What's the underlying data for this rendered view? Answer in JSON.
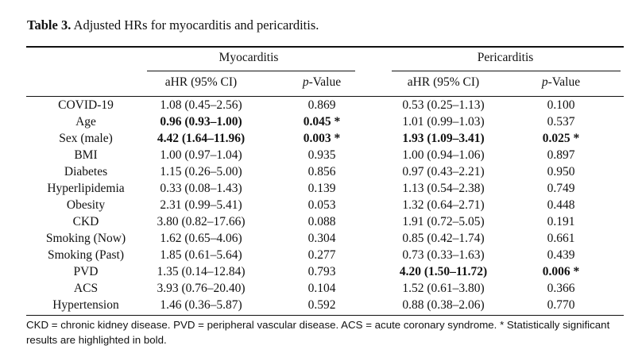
{
  "caption": {
    "label": "Table 3.",
    "text": "Adjusted HRs for myocarditis and pericarditis."
  },
  "groups": [
    "Myocarditis",
    "Pericarditis"
  ],
  "subheaders": {
    "ahr": "aHR (95% CI)",
    "p_italic": "p",
    "p_rest": "-Value"
  },
  "rows": [
    {
      "label": "COVID-19",
      "myo_ahr": "1.08 (0.45–2.56)",
      "myo_p": "0.869",
      "myo_bold": false,
      "peri_ahr": "0.53 (0.25–1.13)",
      "peri_p": "0.100",
      "peri_bold": false
    },
    {
      "label": "Age",
      "myo_ahr": "0.96 (0.93–1.00)",
      "myo_p": "0.045 *",
      "myo_bold": true,
      "peri_ahr": "1.01 (0.99–1.03)",
      "peri_p": "0.537",
      "peri_bold": false
    },
    {
      "label": "Sex (male)",
      "myo_ahr": "4.42 (1.64–11.96)",
      "myo_p": "0.003 *",
      "myo_bold": true,
      "peri_ahr": "1.93 (1.09–3.41)",
      "peri_p": "0.025 *",
      "peri_bold": true
    },
    {
      "label": "BMI",
      "myo_ahr": "1.00 (0.97–1.04)",
      "myo_p": "0.935",
      "myo_bold": false,
      "peri_ahr": "1.00 (0.94–1.06)",
      "peri_p": "0.897",
      "peri_bold": false
    },
    {
      "label": "Diabetes",
      "myo_ahr": "1.15 (0.26–5.00)",
      "myo_p": "0.856",
      "myo_bold": false,
      "peri_ahr": "0.97 (0.43–2.21)",
      "peri_p": "0.950",
      "peri_bold": false
    },
    {
      "label": "Hyperlipidemia",
      "myo_ahr": "0.33 (0.08–1.43)",
      "myo_p": "0.139",
      "myo_bold": false,
      "peri_ahr": "1.13 (0.54–2.38)",
      "peri_p": "0.749",
      "peri_bold": false
    },
    {
      "label": "Obesity",
      "myo_ahr": "2.31 (0.99–5.41)",
      "myo_p": "0.053",
      "myo_bold": false,
      "peri_ahr": "1.32 (0.64–2.71)",
      "peri_p": "0.448",
      "peri_bold": false
    },
    {
      "label": "CKD",
      "myo_ahr": "3.80 (0.82–17.66)",
      "myo_p": "0.088",
      "myo_bold": false,
      "peri_ahr": "1.91 (0.72–5.05)",
      "peri_p": "0.191",
      "peri_bold": false
    },
    {
      "label": "Smoking (Now)",
      "myo_ahr": "1.62 (0.65–4.06)",
      "myo_p": "0.304",
      "myo_bold": false,
      "peri_ahr": "0.85 (0.42–1.74)",
      "peri_p": "0.661",
      "peri_bold": false
    },
    {
      "label": "Smoking (Past)",
      "myo_ahr": "1.85 (0.61–5.64)",
      "myo_p": "0.277",
      "myo_bold": false,
      "peri_ahr": "0.73 (0.33–1.63)",
      "peri_p": "0.439",
      "peri_bold": false
    },
    {
      "label": "PVD",
      "myo_ahr": "1.35 (0.14–12.84)",
      "myo_p": "0.793",
      "myo_bold": false,
      "peri_ahr": "4.20 (1.50–11.72)",
      "peri_p": "0.006 *",
      "peri_bold": true
    },
    {
      "label": "ACS",
      "myo_ahr": "3.93 (0.76–20.40)",
      "myo_p": "0.104",
      "myo_bold": false,
      "peri_ahr": "1.52 (0.61–3.80)",
      "peri_p": "0.366",
      "peri_bold": false
    },
    {
      "label": "Hypertension",
      "myo_ahr": "1.46 (0.36–5.87)",
      "myo_p": "0.592",
      "myo_bold": false,
      "peri_ahr": "0.88 (0.38–2.06)",
      "peri_p": "0.770",
      "peri_bold": false
    }
  ],
  "footnote": "CKD = chronic kidney disease. PVD = peripheral vascular disease. ACS = acute coronary syndrome. * Statistically significant results are highlighted in bold."
}
